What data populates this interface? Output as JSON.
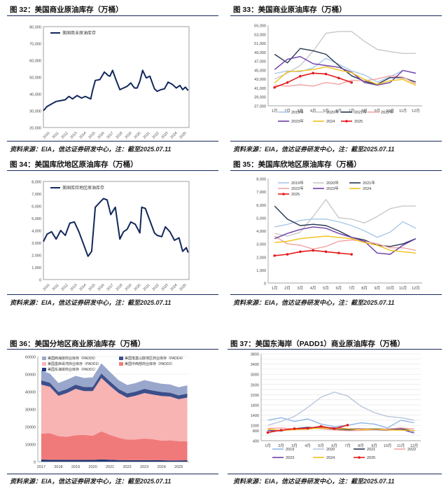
{
  "colors": {
    "navy": "#12285a",
    "red": "#e41a1c",
    "grid": "#e3e3e3",
    "axis": "#555555"
  },
  "figures": [
    {
      "id": "f32",
      "title": "图 32：美国商业原油库存（万桶）",
      "source": "资料来源：EIA，信达证券研发中心，注：截至2025.07.11"
    },
    {
      "id": "f33",
      "title": "图 33：美国商业原油库存（万桶）",
      "source": "资料来源：EIA，信达证券研发中心，注：截至2025.07.11"
    },
    {
      "id": "f34",
      "title": "图 34：美国库欣地区原油库存（万桶）",
      "source": "资料来源：EIA，信达证券研发中心，注：截至2025.07.11"
    },
    {
      "id": "f35",
      "title": "图 35：美国库欣地区原油库存（万桶）",
      "source": "资料来源：EIA，信达证券研发中心，注：截至2025.07.11"
    },
    {
      "id": "f36",
      "title": "图 36：美国分地区商业原油库存（万桶）",
      "source": "资料来源：EIA，信达证券研发中心，注：截至2025.07.11"
    },
    {
      "id": "f37",
      "title": "图 37：美国东海岸（PADD1）商业原油库存（万桶）",
      "source": "资料来源：EIA，信达证券研发中心，注：截至2025.07.11"
    }
  ],
  "chart_data": [
    {
      "id": "f32",
      "type": "line",
      "legend": [
        "美国商业原油库存"
      ],
      "ylim": [
        20000,
        80000
      ],
      "yticks": [
        20000,
        30000,
        40000,
        50000,
        60000,
        70000,
        80000
      ],
      "xticks": [
        "2010",
        "2011",
        "2012",
        "2013",
        "2014",
        "2015",
        "2016",
        "2017",
        "2018",
        "2019",
        "2020",
        "2021",
        "2022",
        "2023",
        "2024",
        "2025"
      ],
      "series": [
        {
          "name": "美国商业原油库存",
          "x": [
            2009.6,
            2010.0,
            2010.5,
            2011.0,
            2011.5,
            2012.0,
            2012.4,
            2012.8,
            2013.3,
            2013.8,
            2014.2,
            2014.8,
            2015.0,
            2015.3,
            2015.8,
            2016.3,
            2016.7,
            2016.9,
            2017.2,
            2017.6,
            2018.0,
            2018.4,
            2018.8,
            2019.2,
            2019.6,
            2019.9,
            2020.2,
            2020.5,
            2020.9,
            2021.3,
            2021.8,
            2022.1,
            2022.5,
            2022.9,
            2023.3,
            2023.8,
            2024.2,
            2024.6,
            2024.9,
            2025.2,
            2025.5
          ],
          "values": [
            30000,
            32500,
            34000,
            35500,
            36000,
            36500,
            38500,
            37000,
            39000,
            37500,
            38500,
            37000,
            42000,
            48000,
            48500,
            53000,
            51000,
            50500,
            54000,
            48000,
            42500,
            43500,
            44500,
            46500,
            43500,
            43500,
            47500,
            54000,
            49500,
            50500,
            43000,
            41500,
            42500,
            43000,
            47000,
            45500,
            43500,
            45000,
            42500,
            44000,
            42000
          ]
        }
      ]
    },
    {
      "id": "f33",
      "type": "line",
      "ylim": [
        37000,
        55000
      ],
      "yticks": [
        37000,
        39000,
        41000,
        43000,
        45000,
        47000,
        49000,
        51000,
        53000,
        55000
      ],
      "xticks": [
        "1月",
        "2月",
        "3月",
        "4月",
        "5月",
        "6月",
        "7月",
        "8月",
        "9月",
        "10月",
        "11月",
        "12月"
      ],
      "series": [
        {
          "name": "2019年",
          "color": "#a7c8ea",
          "values": [
            44200,
            44800,
            44600,
            45500,
            47600,
            46300,
            44800,
            43900,
            42300,
            43500,
            44900,
            44200
          ]
        },
        {
          "name": "2020年",
          "color": "#c9c9c9",
          "values": [
            43000,
            44300,
            46000,
            49200,
            53200,
            53600,
            53600,
            51400,
            49600,
            49100,
            48700,
            48700
          ]
        },
        {
          "name": "2021年",
          "color": "#26364f",
          "values": [
            48500,
            46600,
            49800,
            49300,
            48500,
            46000,
            43700,
            42500,
            41800,
            43300,
            43300,
            42300
          ]
        },
        {
          "name": "2022年",
          "color": "#f2a3a3",
          "values": [
            41600,
            41400,
            41700,
            41400,
            42200,
            41800,
            42700,
            42600,
            43000,
            43700,
            43400,
            41900
          ]
        },
        {
          "name": "2023年",
          "color": "#6c3fa8",
          "values": [
            45100,
            47400,
            48000,
            46400,
            46000,
            45600,
            44500,
            42200,
            41600,
            42200,
            44900,
            44300
          ]
        },
        {
          "name": "2024",
          "color": "#f2c018",
          "values": [
            42100,
            44600,
            44800,
            45100,
            45700,
            45000,
            44400,
            42900,
            41800,
            42600,
            42900,
            41600
          ]
        },
        {
          "name": "2025",
          "color": "#e41a1c",
          "values": [
            41100,
            42200,
            43600,
            44300,
            44100,
            43200,
            42200
          ]
        }
      ]
    },
    {
      "id": "f34",
      "type": "line",
      "legend": [
        "美国库欣地区原油库存"
      ],
      "ylim": [
        0,
        8000
      ],
      "yticks": [
        0,
        1000,
        2000,
        3000,
        4000,
        5000,
        6000,
        7000,
        8000
      ],
      "xticks": [
        "2010",
        "2011",
        "2012",
        "2013",
        "2014",
        "2015",
        "2016",
        "2017",
        "2018",
        "2019",
        "2020",
        "2021",
        "2022",
        "2023",
        "2024",
        "2025"
      ],
      "series": [
        {
          "name": "美国库欣地区原油库存",
          "x": [
            2009.6,
            2010.0,
            2010.5,
            2011.0,
            2011.5,
            2012.0,
            2012.5,
            2013.0,
            2013.5,
            2014.0,
            2014.5,
            2014.9,
            2015.3,
            2015.8,
            2016.2,
            2016.6,
            2017.0,
            2017.5,
            2018.0,
            2018.4,
            2018.8,
            2019.2,
            2019.7,
            2020.2,
            2020.4,
            2020.8,
            2021.3,
            2021.8,
            2022.1,
            2022.6,
            2023.0,
            2023.5,
            2024.0,
            2024.5,
            2024.9,
            2025.3,
            2025.5
          ],
          "values": [
            3100,
            3700,
            3900,
            3300,
            4000,
            3600,
            4600,
            4700,
            3900,
            2900,
            1900,
            2300,
            5900,
            6300,
            6600,
            6500,
            5300,
            5900,
            3300,
            3900,
            4100,
            4700,
            4500,
            3800,
            5900,
            5800,
            4800,
            3800,
            3600,
            3500,
            4300,
            3900,
            3200,
            3400,
            2300,
            2600,
            2200
          ]
        }
      ]
    },
    {
      "id": "f35",
      "type": "line",
      "ylim": [
        0,
        8000
      ],
      "yticks": [
        0,
        1000,
        2000,
        3000,
        4000,
        5000,
        6000,
        7000,
        8000
      ],
      "xticks": [
        "1月",
        "2月",
        "3月",
        "4月",
        "5月",
        "6月",
        "7月",
        "8月",
        "9月",
        "10月",
        "11月",
        "12月"
      ],
      "series": [
        {
          "name": "2019年",
          "color": "#a7c8ea",
          "values": [
            4300,
            4500,
            4800,
            4900,
            4900,
            4700,
            4400,
            4000,
            3500,
            3900,
            4700,
            4200
          ]
        },
        {
          "name": "2020年",
          "color": "#c9c9c9",
          "values": [
            3800,
            3600,
            3900,
            5100,
            6400,
            5000,
            4900,
            4600,
            5100,
            5700,
            5900,
            5900
          ]
        },
        {
          "name": "2021年",
          "color": "#26364f",
          "values": [
            5900,
            4900,
            4400,
            4500,
            4400,
            4000,
            3500,
            3300,
            2900,
            2800,
            3000,
            3400
          ]
        },
        {
          "name": "2022年",
          "color": "#f2a3a3",
          "values": [
            3600,
            3000,
            2900,
            2600,
            2800,
            3200,
            3300,
            3200,
            3000,
            2700,
            2700,
            2500
          ]
        },
        {
          "name": "2023年",
          "color": "#6c3fa8",
          "values": [
            3400,
            3800,
            4100,
            4300,
            4200,
            3800,
            3500,
            3200,
            2300,
            2200,
            2900,
            3400
          ]
        },
        {
          "name": "2024",
          "color": "#f2c018",
          "values": [
            3100,
            3200,
            3400,
            3500,
            3600,
            3500,
            3400,
            3100,
            2900,
            2500,
            2400,
            2300
          ]
        },
        {
          "name": "2025",
          "color": "#e41a1c",
          "values": [
            2100,
            2200,
            2400,
            2500,
            2400,
            2300,
            2200
          ]
        }
      ]
    },
    {
      "id": "f36",
      "type": "area",
      "ylim": [
        0,
        60000
      ],
      "yticks": [
        0,
        10000,
        20000,
        30000,
        40000,
        50000,
        60000
      ],
      "xticks": [
        "2017",
        "2018",
        "2019",
        "2020",
        "2021",
        "2022",
        "2023",
        "2024",
        "2025"
      ],
      "x": [
        2017.0,
        2017.5,
        2018.0,
        2018.5,
        2019.0,
        2019.5,
        2020.0,
        2020.5,
        2021.0,
        2021.5,
        2022.0,
        2022.5,
        2023.0,
        2023.5,
        2024.0,
        2024.5,
        2025.0,
        2025.5
      ],
      "series": [
        {
          "name": "美国东海岸商业库存（PADD1）",
          "color": "#1f3a78",
          "values": [
            1200,
            1100,
            1100,
            1000,
            1100,
            1000,
            1000,
            1300,
            1100,
            900,
            900,
            800,
            900,
            800,
            800,
            700,
            700,
            800
          ]
        },
        {
          "name": "美国中西部商业库存（PADD2）",
          "color": "#f07a7a",
          "values": [
            14800,
            15200,
            13500,
            13200,
            14000,
            14300,
            13800,
            16000,
            14200,
            12800,
            11700,
            11900,
            12300,
            12000,
            11200,
            11500,
            11000,
            10800
          ]
        },
        {
          "name": "美国墨西哥湾商业库存（PADD3）",
          "color": "#f8b3b3",
          "values": [
            28000,
            26500,
            23000,
            25000,
            26500,
            25000,
            25500,
            30500,
            28000,
            25500,
            24000,
            25000,
            26000,
            25500,
            25500,
            25000,
            24000,
            25000
          ]
        },
        {
          "name": "美国落基山脉地区商业库存（PADD4）",
          "color": "#3c4f8a",
          "values": [
            2400,
            2300,
            2200,
            2300,
            2400,
            2300,
            2400,
            2600,
            2500,
            2300,
            2400,
            2300,
            2400,
            2300,
            2300,
            2200,
            2200,
            2300
          ]
        },
        {
          "name": "美国西海岸商业库存（PADD5）",
          "color": "#9aa7cc",
          "values": [
            5800,
            5200,
            5100,
            5300,
            5000,
            5200,
            5500,
            5800,
            5400,
            5000,
            4800,
            4900,
            5000,
            4900,
            4700,
            4700,
            4600,
            4700
          ]
        }
      ]
    },
    {
      "id": "f37",
      "type": "line",
      "ylim": [
        400,
        3800
      ],
      "yticks": [
        400,
        600,
        800,
        1000,
        1200,
        1400,
        1600,
        1800,
        2000,
        2200,
        2400,
        2600,
        2800,
        3000,
        3200,
        3400,
        3600,
        3800
      ],
      "ytick_labels_shown": [
        400,
        800,
        1000,
        1400,
        1800,
        2200,
        2600,
        3000,
        3400,
        3800
      ],
      "xticks": [
        "1月",
        "2月",
        "3月",
        "4月",
        "5月",
        "6月",
        "7月",
        "8月",
        "9月",
        "10月",
        "11月",
        "12月"
      ],
      "series": [
        {
          "name": "2019",
          "color": "#8fb8e6",
          "values": [
            1200,
            1300,
            1150,
            1250,
            1050,
            950,
            1000,
            1100,
            1050,
            900,
            1200,
            1100
          ]
        },
        {
          "name": "2020",
          "color": "#b8c6dd",
          "values": [
            1000,
            1150,
            1350,
            1700,
            2100,
            2300,
            2150,
            1750,
            1500,
            1350,
            1300,
            1200
          ]
        },
        {
          "name": "2021",
          "color": "#26364f",
          "values": [
            800,
            780,
            870,
            920,
            880,
            850,
            820,
            850,
            860,
            850,
            870,
            780
          ]
        },
        {
          "name": "2022",
          "color": "#f2a3a3",
          "values": [
            880,
            900,
            850,
            900,
            870,
            820,
            790,
            800,
            830,
            860,
            900,
            860
          ]
        },
        {
          "name": "2023",
          "color": "#6c3fa8",
          "values": [
            800,
            790,
            860,
            900,
            920,
            900,
            870,
            860,
            830,
            810,
            850,
            700
          ]
        },
        {
          "name": "2024",
          "color": "#f2c018",
          "values": [
            860,
            800,
            830,
            850,
            900,
            870,
            860,
            840,
            850,
            820,
            810,
            800
          ]
        },
        {
          "name": "2025",
          "color": "#e41a1c",
          "values": [
            720,
            810,
            870,
            880,
            960,
            870,
            1010
          ]
        }
      ]
    }
  ]
}
